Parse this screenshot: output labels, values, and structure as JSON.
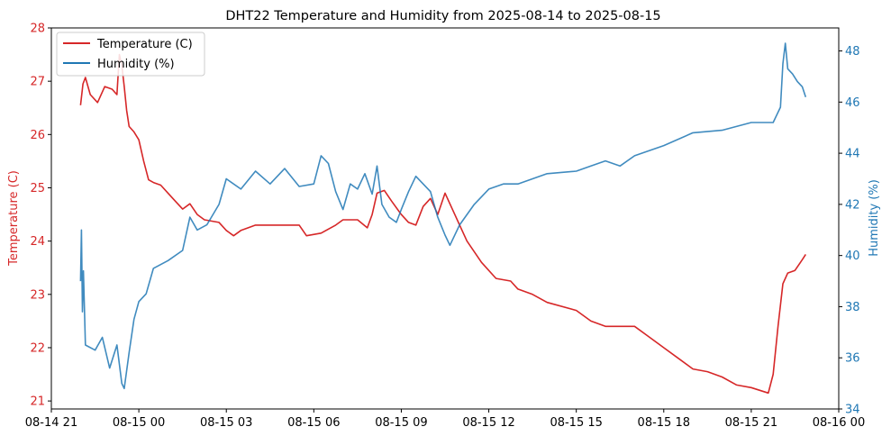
{
  "chart_data": {
    "type": "line",
    "title": "DHT22 Temperature and Humidity from 2025-08-14 to 2025-08-15",
    "xlabel": "",
    "x_ticks": [
      {
        "t": "2025-08-14 21:00",
        "label": "08-14 21"
      },
      {
        "t": "2025-08-15 00:00",
        "label": "08-15 00"
      },
      {
        "t": "2025-08-15 03:00",
        "label": "08-15 03"
      },
      {
        "t": "2025-08-15 06:00",
        "label": "08-15 06"
      },
      {
        "t": "2025-08-15 09:00",
        "label": "08-15 09"
      },
      {
        "t": "2025-08-15 12:00",
        "label": "08-15 12"
      },
      {
        "t": "2025-08-15 15:00",
        "label": "08-15 15"
      },
      {
        "t": "2025-08-15 18:00",
        "label": "08-15 18"
      },
      {
        "t": "2025-08-15 21:00",
        "label": "08-15 21"
      },
      {
        "t": "2025-08-16 00:00",
        "label": "08-16 00"
      }
    ],
    "xlim": [
      "2025-08-14 21:00",
      "2025-08-16 00:00"
    ],
    "left_axis": {
      "label": "Temperature (C)",
      "color": "#d62728",
      "ylim": [
        20.85,
        28.0
      ],
      "ticks": [
        21,
        22,
        23,
        24,
        25,
        26,
        27,
        28
      ]
    },
    "right_axis": {
      "label": "Humidity (%)",
      "color": "#1f77b4",
      "ylim": [
        34.0,
        48.9
      ],
      "ticks": [
        34,
        36,
        38,
        40,
        42,
        44,
        46,
        48
      ]
    },
    "legend": {
      "placement": "top-left",
      "entries": [
        "Temperature (C)",
        "Humidity (%)"
      ]
    },
    "grid": false,
    "series": [
      {
        "name": "Temperature (C)",
        "axis": "left",
        "color": "#d62728",
        "points": [
          [
            "2025-08-14 22:00",
            26.55
          ],
          [
            "2025-08-14 22:05",
            26.95
          ],
          [
            "2025-08-14 22:10",
            27.07
          ],
          [
            "2025-08-14 22:20",
            26.75
          ],
          [
            "2025-08-14 22:35",
            26.6
          ],
          [
            "2025-08-14 22:50",
            26.9
          ],
          [
            "2025-08-14 23:05",
            26.85
          ],
          [
            "2025-08-14 23:15",
            26.75
          ],
          [
            "2025-08-14 23:20",
            27.5
          ],
          [
            "2025-08-14 23:25",
            27.3
          ],
          [
            "2025-08-14 23:30",
            26.9
          ],
          [
            "2025-08-14 23:35",
            26.45
          ],
          [
            "2025-08-14 23:40",
            26.15
          ],
          [
            "2025-08-14 23:50",
            26.05
          ],
          [
            "2025-08-15 00:00",
            25.9
          ],
          [
            "2025-08-15 00:10",
            25.5
          ],
          [
            "2025-08-15 00:20",
            25.15
          ],
          [
            "2025-08-15 00:30",
            25.1
          ],
          [
            "2025-08-15 00:45",
            25.05
          ],
          [
            "2025-08-15 01:00",
            24.9
          ],
          [
            "2025-08-15 01:15",
            24.75
          ],
          [
            "2025-08-15 01:30",
            24.6
          ],
          [
            "2025-08-15 01:45",
            24.7
          ],
          [
            "2025-08-15 02:00",
            24.5
          ],
          [
            "2025-08-15 02:15",
            24.4
          ],
          [
            "2025-08-15 02:45",
            24.35
          ],
          [
            "2025-08-15 03:00",
            24.2
          ],
          [
            "2025-08-15 03:15",
            24.1
          ],
          [
            "2025-08-15 03:30",
            24.2
          ],
          [
            "2025-08-15 04:00",
            24.3
          ],
          [
            "2025-08-15 05:00",
            24.3
          ],
          [
            "2025-08-15 05:30",
            24.3
          ],
          [
            "2025-08-15 05:45",
            24.1
          ],
          [
            "2025-08-15 06:15",
            24.15
          ],
          [
            "2025-08-15 06:45",
            24.3
          ],
          [
            "2025-08-15 07:00",
            24.4
          ],
          [
            "2025-08-15 07:30",
            24.4
          ],
          [
            "2025-08-15 07:50",
            24.25
          ],
          [
            "2025-08-15 08:00",
            24.5
          ],
          [
            "2025-08-15 08:10",
            24.9
          ],
          [
            "2025-08-15 08:25",
            24.95
          ],
          [
            "2025-08-15 08:40",
            24.75
          ],
          [
            "2025-08-15 09:00",
            24.5
          ],
          [
            "2025-08-15 09:15",
            24.35
          ],
          [
            "2025-08-15 09:30",
            24.3
          ],
          [
            "2025-08-15 09:45",
            24.65
          ],
          [
            "2025-08-15 10:00",
            24.8
          ],
          [
            "2025-08-15 10:15",
            24.5
          ],
          [
            "2025-08-15 10:30",
            24.9
          ],
          [
            "2025-08-15 10:50",
            24.5
          ],
          [
            "2025-08-15 11:15",
            24.0
          ],
          [
            "2025-08-15 11:45",
            23.6
          ],
          [
            "2025-08-15 12:15",
            23.3
          ],
          [
            "2025-08-15 12:45",
            23.25
          ],
          [
            "2025-08-15 13:00",
            23.1
          ],
          [
            "2025-08-15 13:30",
            23.0
          ],
          [
            "2025-08-15 14:00",
            22.85
          ],
          [
            "2025-08-15 15:00",
            22.7
          ],
          [
            "2025-08-15 15:30",
            22.5
          ],
          [
            "2025-08-15 16:00",
            22.4
          ],
          [
            "2025-08-15 17:00",
            22.4
          ],
          [
            "2025-08-15 17:30",
            22.2
          ],
          [
            "2025-08-15 18:00",
            22.0
          ],
          [
            "2025-08-15 18:30",
            21.8
          ],
          [
            "2025-08-15 19:00",
            21.6
          ],
          [
            "2025-08-15 19:30",
            21.55
          ],
          [
            "2025-08-15 20:00",
            21.45
          ],
          [
            "2025-08-15 20:30",
            21.3
          ],
          [
            "2025-08-15 21:00",
            21.25
          ],
          [
            "2025-08-15 21:35",
            21.15
          ],
          [
            "2025-08-15 21:45",
            21.5
          ],
          [
            "2025-08-15 21:55",
            22.4
          ],
          [
            "2025-08-15 22:05",
            23.2
          ],
          [
            "2025-08-15 22:15",
            23.4
          ],
          [
            "2025-08-15 22:30",
            23.45
          ],
          [
            "2025-08-15 22:45",
            23.65
          ],
          [
            "2025-08-15 22:52",
            23.75
          ]
        ]
      },
      {
        "name": "Humidity (%)",
        "axis": "right",
        "color": "#1f77b4",
        "points": [
          [
            "2025-08-14 22:00",
            39.0
          ],
          [
            "2025-08-14 22:02",
            41.0
          ],
          [
            "2025-08-14 22:04",
            37.8
          ],
          [
            "2025-08-14 22:06",
            39.4
          ],
          [
            "2025-08-14 22:10",
            36.5
          ],
          [
            "2025-08-14 22:30",
            36.3
          ],
          [
            "2025-08-14 22:45",
            36.8
          ],
          [
            "2025-08-14 23:00",
            35.6
          ],
          [
            "2025-08-14 23:15",
            36.5
          ],
          [
            "2025-08-14 23:25",
            35.0
          ],
          [
            "2025-08-14 23:30",
            34.8
          ],
          [
            "2025-08-14 23:40",
            36.2
          ],
          [
            "2025-08-14 23:50",
            37.5
          ],
          [
            "2025-08-15 00:00",
            38.2
          ],
          [
            "2025-08-15 00:15",
            38.5
          ],
          [
            "2025-08-15 00:30",
            39.5
          ],
          [
            "2025-08-15 01:00",
            39.8
          ],
          [
            "2025-08-15 01:30",
            40.2
          ],
          [
            "2025-08-15 01:45",
            41.5
          ],
          [
            "2025-08-15 02:00",
            41.0
          ],
          [
            "2025-08-15 02:20",
            41.2
          ],
          [
            "2025-08-15 02:45",
            42.0
          ],
          [
            "2025-08-15 03:00",
            43.0
          ],
          [
            "2025-08-15 03:30",
            42.6
          ],
          [
            "2025-08-15 04:00",
            43.3
          ],
          [
            "2025-08-15 04:30",
            42.8
          ],
          [
            "2025-08-15 05:00",
            43.4
          ],
          [
            "2025-08-15 05:30",
            42.7
          ],
          [
            "2025-08-15 06:00",
            42.8
          ],
          [
            "2025-08-15 06:15",
            43.9
          ],
          [
            "2025-08-15 06:30",
            43.6
          ],
          [
            "2025-08-15 06:45",
            42.5
          ],
          [
            "2025-08-15 07:00",
            41.8
          ],
          [
            "2025-08-15 07:15",
            42.8
          ],
          [
            "2025-08-15 07:30",
            42.6
          ],
          [
            "2025-08-15 07:45",
            43.2
          ],
          [
            "2025-08-15 08:00",
            42.4
          ],
          [
            "2025-08-15 08:10",
            43.5
          ],
          [
            "2025-08-15 08:20",
            42.0
          ],
          [
            "2025-08-15 08:35",
            41.5
          ],
          [
            "2025-08-15 08:50",
            41.3
          ],
          [
            "2025-08-15 09:00",
            41.8
          ],
          [
            "2025-08-15 09:15",
            42.5
          ],
          [
            "2025-08-15 09:30",
            43.1
          ],
          [
            "2025-08-15 09:45",
            42.8
          ],
          [
            "2025-08-15 10:00",
            42.5
          ],
          [
            "2025-08-15 10:15",
            41.5
          ],
          [
            "2025-08-15 10:30",
            40.8
          ],
          [
            "2025-08-15 10:40",
            40.4
          ],
          [
            "2025-08-15 11:00",
            41.2
          ],
          [
            "2025-08-15 11:30",
            42.0
          ],
          [
            "2025-08-15 12:00",
            42.6
          ],
          [
            "2025-08-15 12:30",
            42.8
          ],
          [
            "2025-08-15 13:00",
            42.8
          ],
          [
            "2025-08-15 13:30",
            43.0
          ],
          [
            "2025-08-15 14:00",
            43.2
          ],
          [
            "2025-08-15 15:00",
            43.3
          ],
          [
            "2025-08-15 15:30",
            43.5
          ],
          [
            "2025-08-15 16:00",
            43.7
          ],
          [
            "2025-08-15 16:30",
            43.5
          ],
          [
            "2025-08-15 17:00",
            43.9
          ],
          [
            "2025-08-15 18:00",
            44.3
          ],
          [
            "2025-08-15 19:00",
            44.8
          ],
          [
            "2025-08-15 20:00",
            44.9
          ],
          [
            "2025-08-15 21:00",
            45.2
          ],
          [
            "2025-08-15 21:45",
            45.2
          ],
          [
            "2025-08-15 22:00",
            45.8
          ],
          [
            "2025-08-15 22:05",
            47.5
          ],
          [
            "2025-08-15 22:10",
            48.3
          ],
          [
            "2025-08-15 22:15",
            47.3
          ],
          [
            "2025-08-15 22:25",
            47.1
          ],
          [
            "2025-08-15 22:35",
            46.8
          ],
          [
            "2025-08-15 22:45",
            46.6
          ],
          [
            "2025-08-15 22:52",
            46.2
          ]
        ]
      }
    ]
  }
}
